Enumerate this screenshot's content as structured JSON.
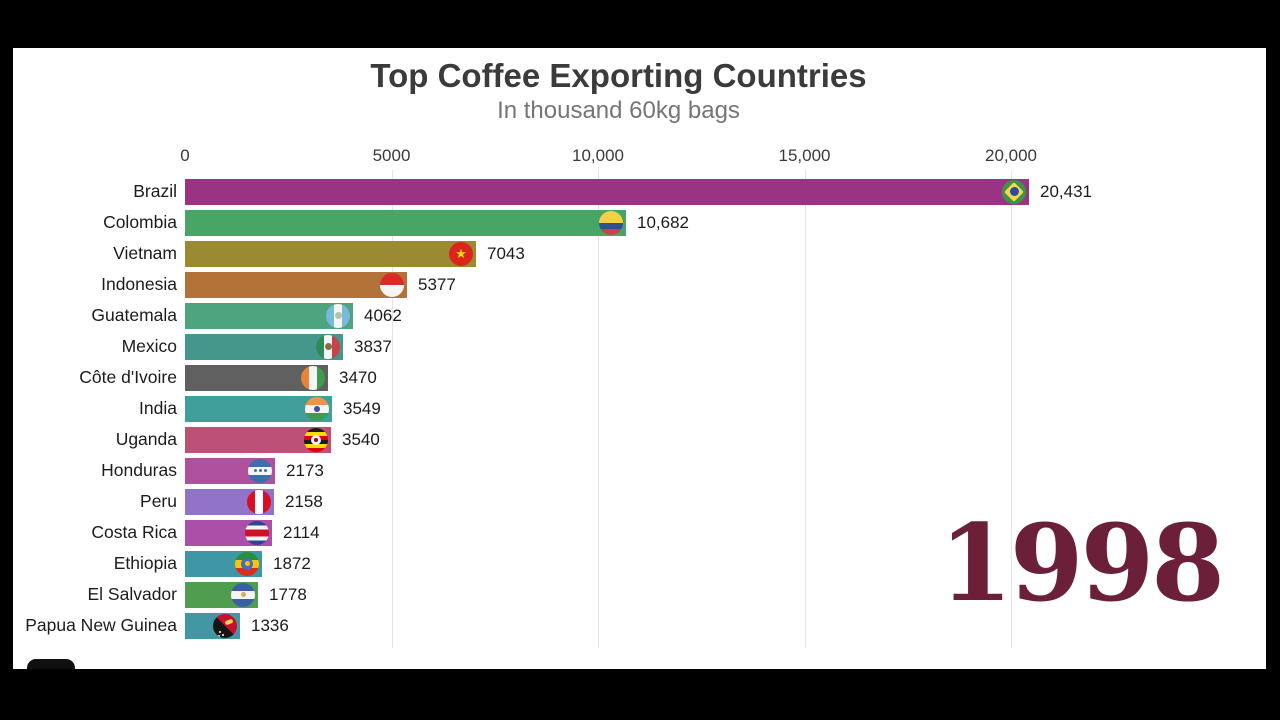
{
  "page": {
    "background_color": "#000000",
    "frame_color": "#ffffff"
  },
  "chart_data": {
    "type": "bar",
    "orientation": "horizontal",
    "title": "Top Coffee Exporting Countries",
    "subtitle": "In thousand 60kg bags",
    "year_label": "1998",
    "year_color": "#6C1F38",
    "grid": true,
    "legend": "none",
    "xlim": [
      0,
      21500
    ],
    "x_ticks": [
      {
        "value": 0,
        "label": "0"
      },
      {
        "value": 5000,
        "label": "5000"
      },
      {
        "value": 10000,
        "label": "10,000"
      },
      {
        "value": 15000,
        "label": "15,000"
      },
      {
        "value": 20000,
        "label": "20,000"
      }
    ],
    "bars": [
      {
        "country": "Brazil",
        "value": 20431,
        "display": "20,431",
        "color": "#9A3384",
        "flag": "br",
        "flag_name": "brazil-flag-icon"
      },
      {
        "country": "Colombia",
        "value": 10682,
        "display": "10,682",
        "color": "#47A566",
        "flag": "co",
        "flag_name": "colombia-flag-icon"
      },
      {
        "country": "Vietnam",
        "value": 7043,
        "display": "7043",
        "color": "#9C8A33",
        "flag": "vn",
        "flag_name": "vietnam-flag-icon"
      },
      {
        "country": "Indonesia",
        "value": 5377,
        "display": "5377",
        "color": "#B37238",
        "flag": "id",
        "flag_name": "indonesia-flag-icon"
      },
      {
        "country": "Guatemala",
        "value": 4062,
        "display": "4062",
        "color": "#4EA47E",
        "flag": "gt",
        "flag_name": "guatemala-flag-icon"
      },
      {
        "country": "Mexico",
        "value": 3837,
        "display": "3837",
        "color": "#45968B",
        "flag": "mx",
        "flag_name": "mexico-flag-icon"
      },
      {
        "country": "Côte d'Ivoire",
        "value": 3470,
        "display": "3470",
        "color": "#606060",
        "flag": "ci",
        "flag_name": "cote-divoire-flag-icon"
      },
      {
        "country": "India",
        "value": 3549,
        "display": "3549",
        "color": "#3E9F9B",
        "flag": "in",
        "flag_name": "india-flag-icon"
      },
      {
        "country": "Uganda",
        "value": 3540,
        "display": "3540",
        "color": "#BC5076",
        "flag": "ug",
        "flag_name": "uganda-flag-icon"
      },
      {
        "country": "Honduras",
        "value": 2173,
        "display": "2173",
        "color": "#B0519E",
        "flag": "hn",
        "flag_name": "honduras-flag-icon"
      },
      {
        "country": "Peru",
        "value": 2158,
        "display": "2158",
        "color": "#9173C8",
        "flag": "pe",
        "flag_name": "peru-flag-icon"
      },
      {
        "country": "Costa Rica",
        "value": 2114,
        "display": "2114",
        "color": "#AC4FA8",
        "flag": "cr",
        "flag_name": "costa-rica-flag-icon"
      },
      {
        "country": "Ethiopia",
        "value": 1872,
        "display": "1872",
        "color": "#3F96A5",
        "flag": "et",
        "flag_name": "ethiopia-flag-icon"
      },
      {
        "country": "El Salvador",
        "value": 1778,
        "display": "1778",
        "color": "#4F9D4F",
        "flag": "sv",
        "flag_name": "el-salvador-flag-icon"
      },
      {
        "country": "Papua New Guinea",
        "value": 1336,
        "display": "1336",
        "color": "#4397A5",
        "flag": "pg",
        "flag_name": "papua-new-guinea-flag-icon"
      }
    ]
  }
}
